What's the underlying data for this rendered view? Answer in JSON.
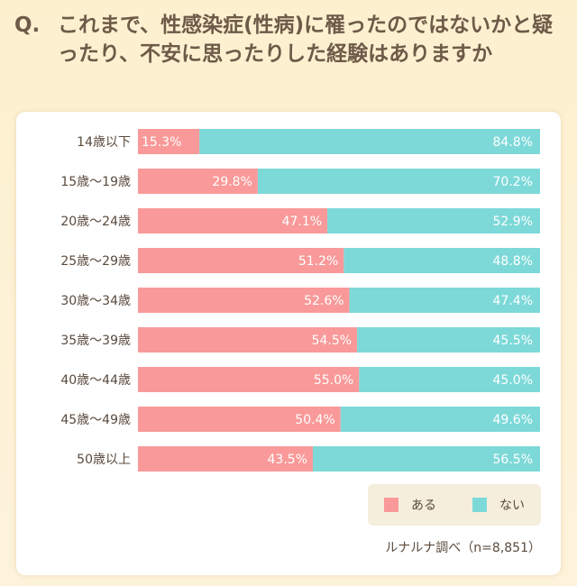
{
  "question": {
    "prefix": "Q.",
    "text": "これまで、性感染症(性病)に罹ったのではないかと疑ったり、不安に思ったりした経験はありますか"
  },
  "colors": {
    "yes": "#f99999",
    "no": "#7dd9d8"
  },
  "chart_data": {
    "type": "bar",
    "orientation": "horizontal",
    "stacked": true,
    "percent": true,
    "categories": [
      "14歳以下",
      "15歳〜19歳",
      "20歳〜24歳",
      "25歳〜29歳",
      "30歳〜34歳",
      "35歳〜39歳",
      "40歳〜44歳",
      "45歳〜49歳",
      "50歳以上"
    ],
    "series": [
      {
        "name": "ある",
        "values": [
          15.3,
          29.8,
          47.1,
          51.2,
          52.6,
          54.5,
          55.0,
          50.4,
          43.5
        ],
        "labels": [
          "15.3%",
          "29.8%",
          "47.1%",
          "51.2%",
          "52.6%",
          "54.5%",
          "55.0%",
          "50.4%",
          "43.5%"
        ]
      },
      {
        "name": "ない",
        "values": [
          84.8,
          70.2,
          52.9,
          48.8,
          47.4,
          45.5,
          45.0,
          49.6,
          56.5
        ],
        "labels": [
          "84.8%",
          "70.2%",
          "52.9%",
          "48.8%",
          "47.4%",
          "45.5%",
          "45.0%",
          "49.6%",
          "56.5%"
        ]
      }
    ],
    "legend_position": "bottom-right"
  },
  "legend": {
    "yes": "ある",
    "no": "ない"
  },
  "source": "ルナルナ調べ（n=8,851）"
}
